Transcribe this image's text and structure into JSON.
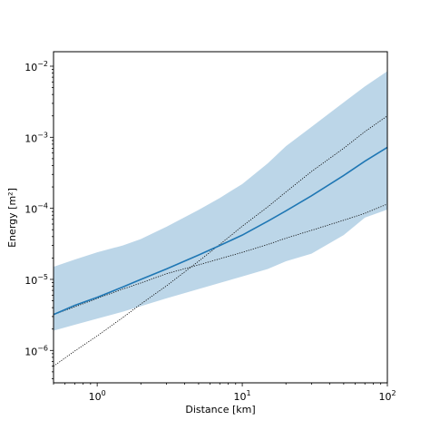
{
  "chart_data": {
    "type": "line",
    "title": "",
    "xlabel": "Distance [km]",
    "ylabel": "Energy [m²]",
    "xscale": "log",
    "yscale": "log",
    "xlim": [
      0.5,
      100
    ],
    "ylim": [
      3.5e-07,
      0.016
    ],
    "grid": false,
    "x_ticks": [
      {
        "base": "10",
        "exp": "0",
        "value": 1
      },
      {
        "base": "10",
        "exp": "1",
        "value": 10
      },
      {
        "base": "10",
        "exp": "2",
        "value": 100
      }
    ],
    "y_ticks": [
      {
        "base": "10",
        "exp": "−6",
        "value": 1e-06
      },
      {
        "base": "10",
        "exp": "−5",
        "value": 1e-05
      },
      {
        "base": "10",
        "exp": "−4",
        "value": 0.0001
      },
      {
        "base": "10",
        "exp": "−3",
        "value": 0.001
      },
      {
        "base": "10",
        "exp": "−2",
        "value": 0.01
      }
    ],
    "x": [
      0.5,
      0.7,
      1,
      1.5,
      2,
      3,
      5,
      7,
      10,
      15,
      20,
      30,
      50,
      70,
      100
    ],
    "series": [
      {
        "style": "solid",
        "color": "#1f77b4",
        "values": [
          3.2e-06,
          4.3e-06,
          5.6e-06,
          7.8e-06,
          1e-05,
          1.4e-05,
          2.2e-05,
          3e-05,
          4.2e-05,
          6.6e-05,
          9.2e-05,
          0.00015,
          0.00029,
          0.00046,
          0.00072
        ]
      },
      {
        "style": "dotted",
        "color": "#000000",
        "values": [
          3.2e-06,
          4.1e-06,
          5.4e-06,
          7.3e-06,
          8.9e-06,
          1.2e-05,
          1.6e-05,
          1.95e-05,
          2.4e-05,
          3.1e-05,
          3.8e-05,
          4.9e-05,
          6.8e-05,
          8.5e-05,
          0.000115
        ]
      },
      {
        "style": "dotted",
        "color": "#000000",
        "values": [
          6e-07,
          9.8e-07,
          1.6e-06,
          2.9e-06,
          4.5e-06,
          8.1e-06,
          1.8e-05,
          3.1e-05,
          5.6e-05,
          0.000105,
          0.00017,
          0.00033,
          0.0007,
          0.0012,
          0.002
        ]
      }
    ],
    "band": {
      "color": "#a6c8e0",
      "upper": [
        1.5e-05,
        1.9e-05,
        2.4e-05,
        3e-05,
        3.7e-05,
        5.5e-05,
        9.5e-05,
        0.00014,
        0.00022,
        0.00043,
        0.00075,
        0.0014,
        0.0031,
        0.0052,
        0.0085
      ],
      "lower": [
        1.9e-06,
        2.3e-06,
        2.8e-06,
        3.5e-06,
        4.2e-06,
        5.4e-06,
        7.3e-06,
        8.9e-06,
        1.1e-05,
        1.4e-05,
        1.8e-05,
        2.3e-05,
        4.2e-05,
        7.4e-05,
        9.6e-05
      ]
    }
  }
}
